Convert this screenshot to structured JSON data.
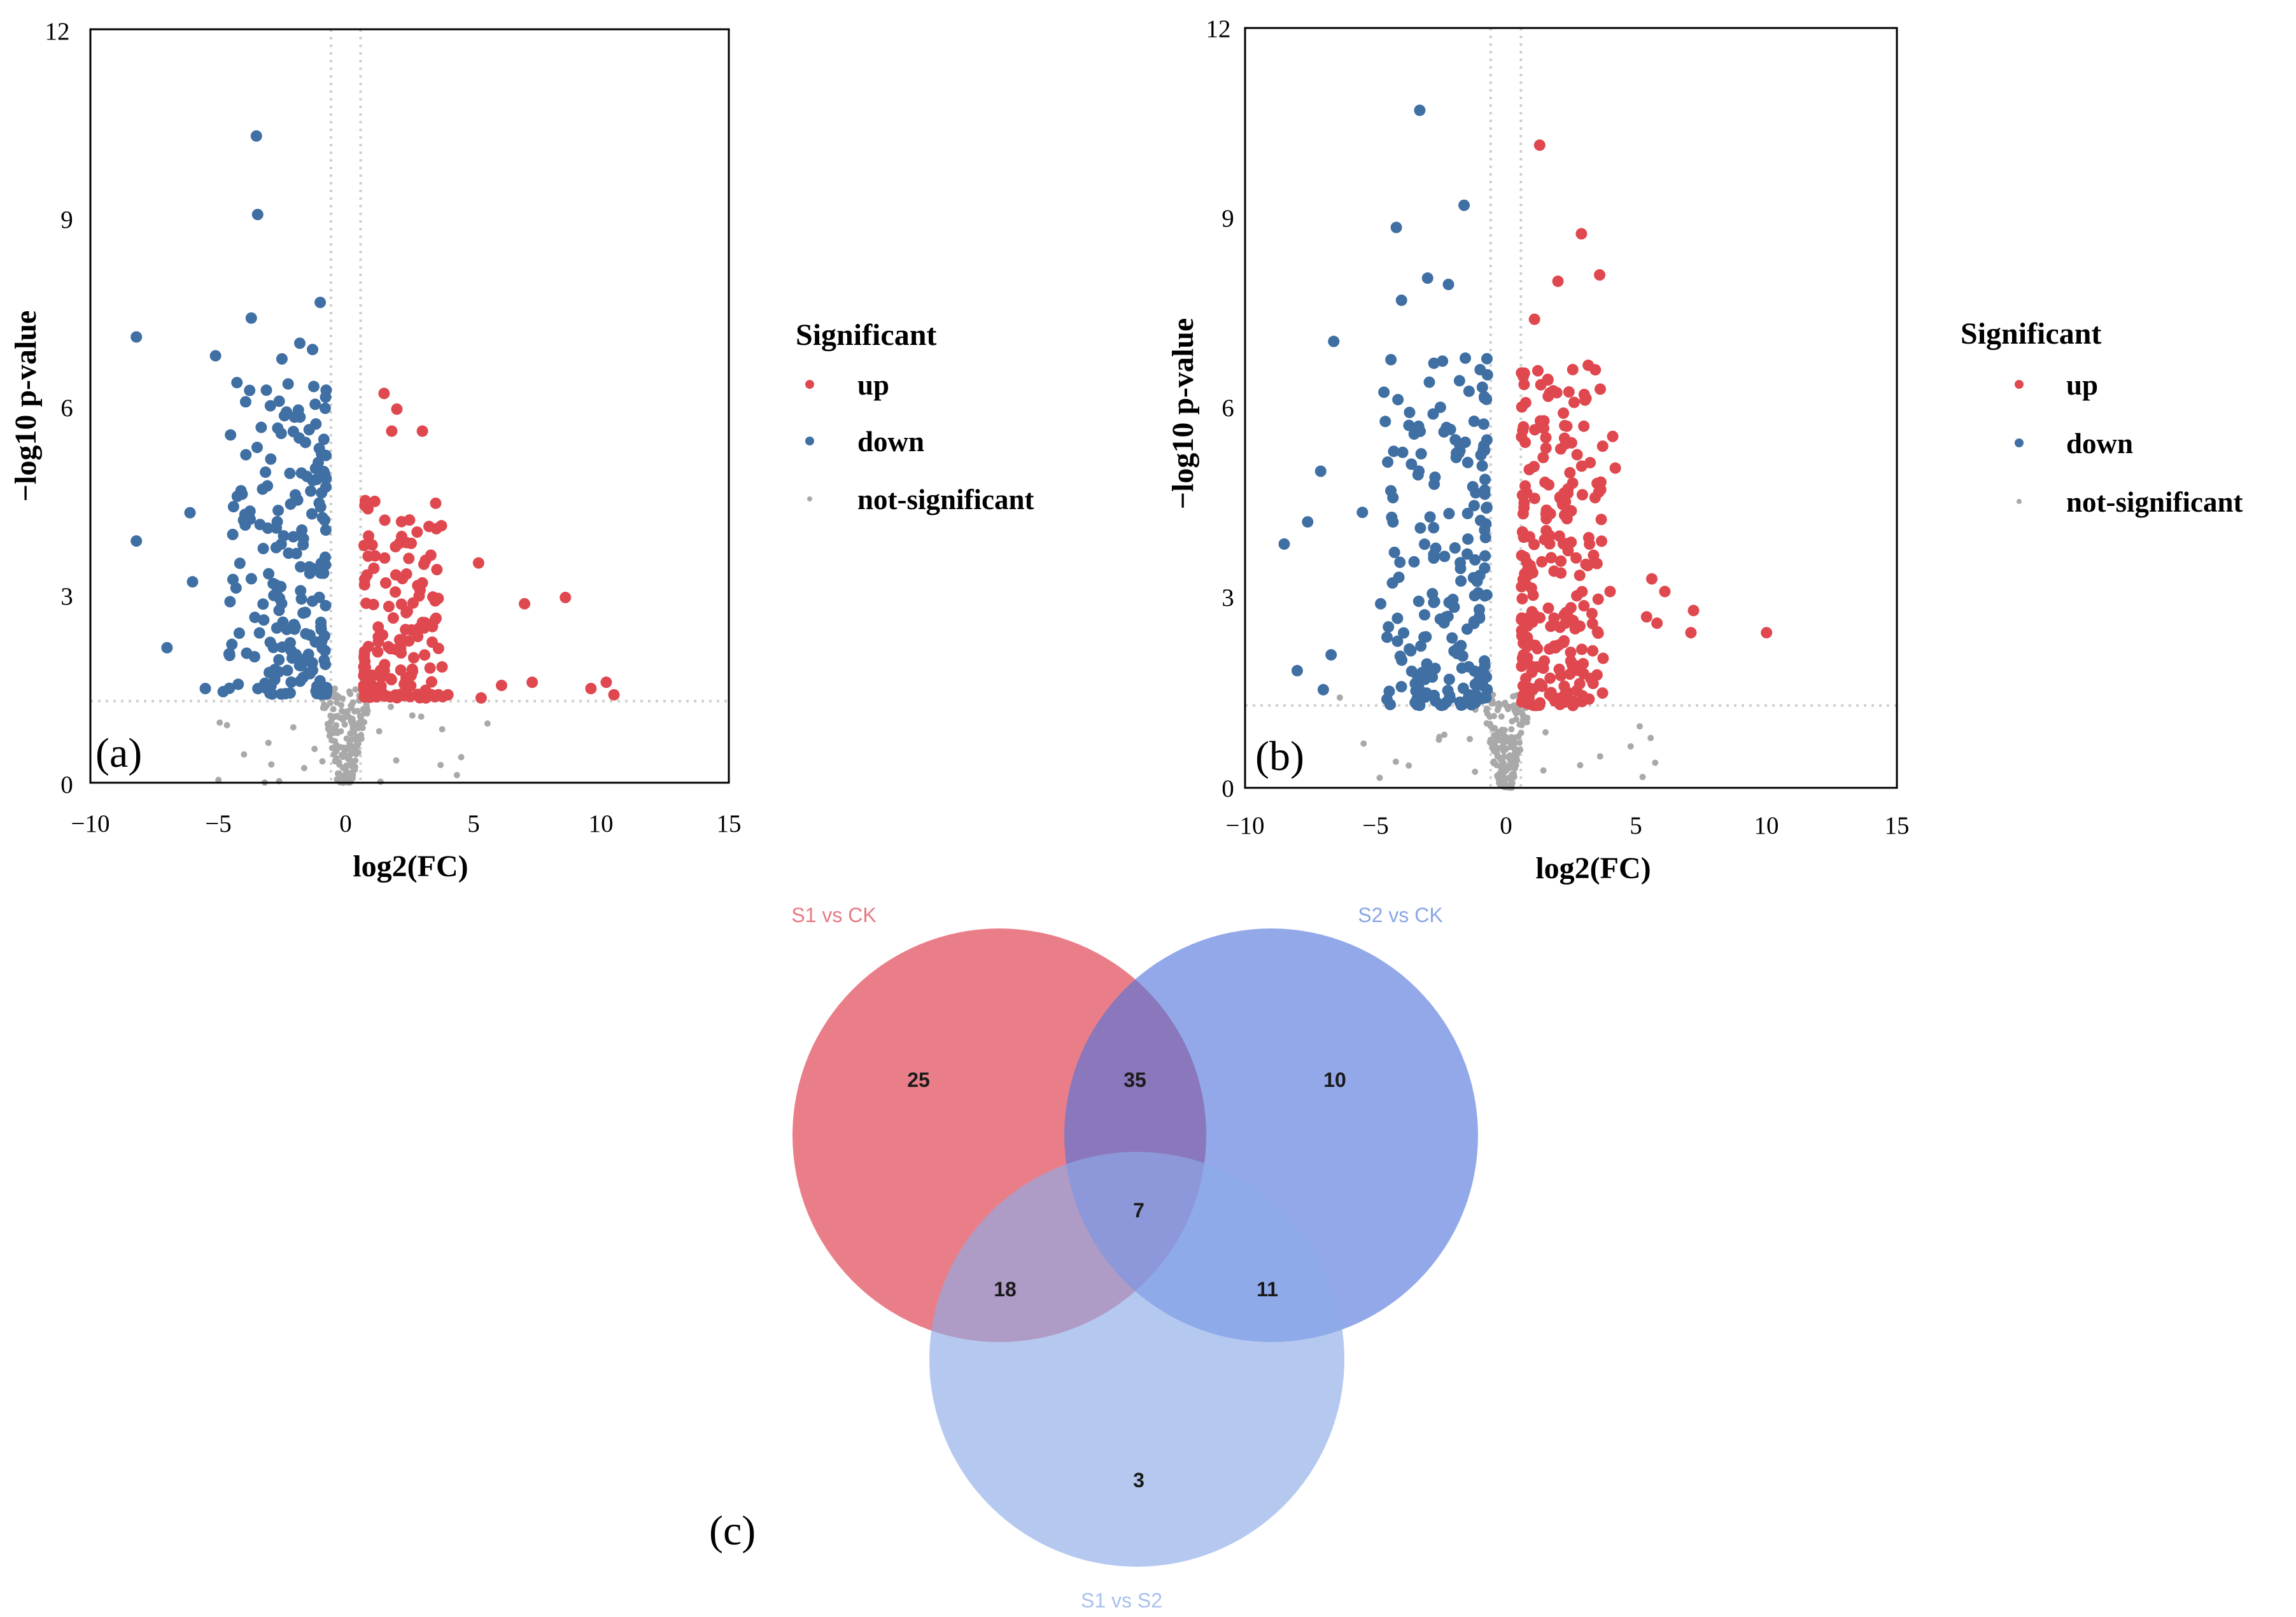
{
  "colors": {
    "up": "#e0484f",
    "down": "#3f6fa3",
    "ns": "#a9a9a9",
    "venn_s1_ck": "#e45a67",
    "venn_s2_ck": "#4f73db",
    "venn_s1_s2": "#8eaae8"
  },
  "panels": {
    "a": {
      "label": "(a)"
    },
    "b": {
      "label": "(b)"
    },
    "c": {
      "label": "(c)"
    }
  },
  "chart_data": [
    {
      "id": "a",
      "type": "scatter",
      "xlabel": "log2(FC)",
      "ylabel": "−log10 p-value",
      "xlim": [
        -10,
        15
      ],
      "ylim": [
        0,
        12
      ],
      "xticks": [
        "−10",
        "−5",
        "0",
        "5",
        "10",
        "15"
      ],
      "yticks": [
        "0",
        "3",
        "6",
        "9",
        "12"
      ],
      "thresholds": {
        "x": [
          -0.58,
          0.58
        ],
        "y": 1.3
      },
      "legend": {
        "title": "Significant",
        "items": [
          "up",
          "down",
          "not-significant"
        ],
        "placement": "right"
      },
      "highlight_points": {
        "down": [
          [
            -3.5,
            10.3
          ],
          [
            -3.45,
            9.05
          ],
          [
            -8.2,
            7.1
          ],
          [
            -3.7,
            7.4
          ],
          [
            -1.0,
            7.65
          ],
          [
            -5.1,
            6.8
          ],
          [
            -1.8,
            7.0
          ],
          [
            -2.5,
            6.75
          ],
          [
            -1.3,
            6.9
          ],
          [
            -8.2,
            3.85
          ],
          [
            -7.0,
            2.15
          ],
          [
            -6.1,
            4.3
          ],
          [
            -5.5,
            1.5
          ],
          [
            -4.8,
            1.45
          ],
          [
            -6.0,
            3.2
          ]
        ],
        "up": [
          [
            1.5,
            6.2
          ],
          [
            2.0,
            5.95
          ],
          [
            3.0,
            5.6
          ],
          [
            1.8,
            5.6
          ],
          [
            5.2,
            3.5
          ],
          [
            7.0,
            2.85
          ],
          [
            8.6,
            2.95
          ],
          [
            10.2,
            1.6
          ],
          [
            10.5,
            1.4
          ],
          [
            9.6,
            1.5
          ],
          [
            7.3,
            1.6
          ],
          [
            6.1,
            1.55
          ],
          [
            5.3,
            1.35
          ],
          [
            4.0,
            1.4
          ]
        ]
      },
      "cloud": {
        "down": {
          "n": 190,
          "x": [
            -4.6,
            -0.75
          ],
          "y": [
            1.4,
            6.4
          ],
          "seed": 11
        },
        "up": {
          "n": 150,
          "x": [
            0.7,
            3.8
          ],
          "y": [
            1.35,
            4.5
          ],
          "seed": 23
        },
        "ns": {
          "n": 230,
          "x": [
            -1.2,
            1.5
          ],
          "y": [
            0,
            1.5
          ],
          "seed": 37
        }
      }
    },
    {
      "id": "b",
      "type": "scatter",
      "xlabel": "log2(FC)",
      "ylabel": "−log10 p-value",
      "xlim": [
        -10,
        15
      ],
      "ylim": [
        0,
        12
      ],
      "xticks": [
        "−10",
        "−5",
        "0",
        "5",
        "10",
        "15"
      ],
      "yticks": [
        "0",
        "3",
        "6",
        "9",
        "12"
      ],
      "thresholds": {
        "x": [
          -0.58,
          0.58
        ],
        "y": 1.3
      },
      "legend": {
        "title": "Significant",
        "items": [
          "up",
          "down",
          "not-significant"
        ],
        "placement": "right"
      },
      "highlight_points": {
        "down": [
          [
            -3.3,
            10.7
          ],
          [
            -1.6,
            9.2
          ],
          [
            -4.2,
            8.85
          ],
          [
            -3.0,
            8.05
          ],
          [
            -2.2,
            7.95
          ],
          [
            -4.0,
            7.7
          ],
          [
            -6.6,
            7.05
          ],
          [
            -7.1,
            5.0
          ],
          [
            -7.6,
            4.2
          ],
          [
            -8.5,
            3.85
          ],
          [
            -6.7,
            2.1
          ],
          [
            -8.0,
            1.85
          ],
          [
            -7.0,
            1.55
          ],
          [
            -5.5,
            4.35
          ]
        ],
        "up": [
          [
            1.3,
            10.15
          ],
          [
            2.9,
            8.75
          ],
          [
            3.6,
            8.1
          ],
          [
            2.0,
            8.0
          ],
          [
            1.1,
            7.4
          ],
          [
            4.1,
            5.55
          ],
          [
            4.2,
            5.05
          ],
          [
            5.6,
            3.3
          ],
          [
            6.1,
            3.1
          ],
          [
            7.2,
            2.8
          ],
          [
            5.4,
            2.7
          ],
          [
            5.8,
            2.6
          ],
          [
            7.1,
            2.45
          ],
          [
            10.0,
            2.45
          ],
          [
            4.0,
            3.1
          ]
        ]
      },
      "cloud": {
        "down": {
          "n": 200,
          "x": [
            -4.8,
            -0.7
          ],
          "y": [
            1.3,
            6.8
          ],
          "seed": 53
        },
        "up": {
          "n": 240,
          "x": [
            0.6,
            3.8
          ],
          "y": [
            1.3,
            6.7
          ],
          "seed": 71
        },
        "ns": {
          "n": 220,
          "x": [
            -1.2,
            1.2
          ],
          "y": [
            0,
            1.5
          ],
          "seed": 89
        }
      }
    },
    {
      "id": "c",
      "type": "venn",
      "sets": [
        "S1 vs CK",
        "S2 vs CK",
        "S1 vs S2"
      ],
      "regions": {
        "S1vsCK_only": "25",
        "S1vsCK_S2vsCK": "35",
        "S2vsCK_only": "10",
        "all_three": "7",
        "S1vsCK_S1vsS2": "18",
        "S2vsCK_S1vsS2": "11",
        "S1vsS2_only": "3"
      }
    }
  ]
}
